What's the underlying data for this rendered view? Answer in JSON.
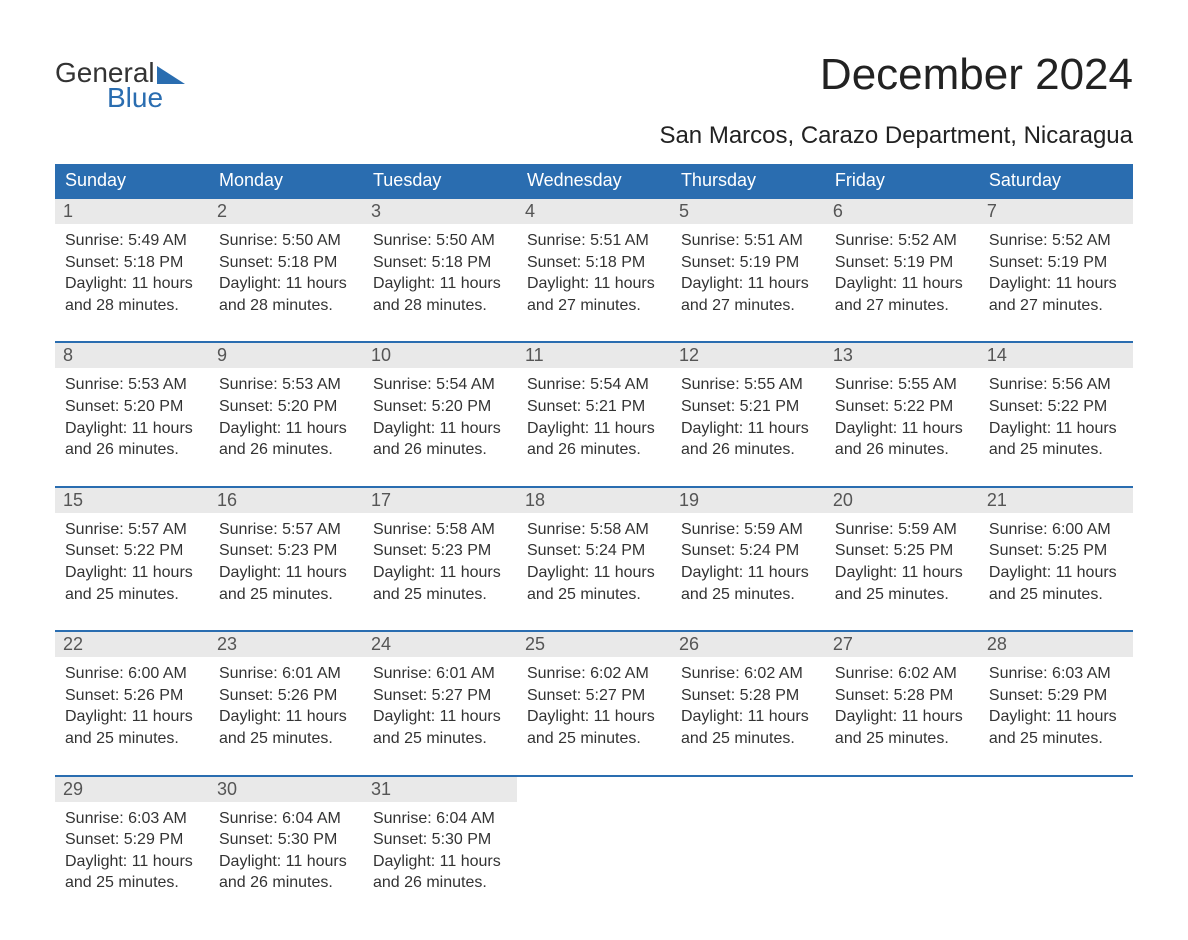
{
  "brand": {
    "part1": "General",
    "part2": "Blue"
  },
  "header": {
    "month_title": "December 2024",
    "location": "San Marcos, Carazo Department, Nicaragua"
  },
  "colors": {
    "header_blue": "#2a6db0",
    "row_band": "#e9e9e9",
    "text": "#333333",
    "bg": "#ffffff"
  },
  "days_of_week": [
    "Sunday",
    "Monday",
    "Tuesday",
    "Wednesday",
    "Thursday",
    "Friday",
    "Saturday"
  ],
  "weeks": [
    [
      {
        "n": "1",
        "sunrise": "Sunrise: 5:49 AM",
        "sunset": "Sunset: 5:18 PM",
        "d1": "Daylight: 11 hours",
        "d2": "and 28 minutes."
      },
      {
        "n": "2",
        "sunrise": "Sunrise: 5:50 AM",
        "sunset": "Sunset: 5:18 PM",
        "d1": "Daylight: 11 hours",
        "d2": "and 28 minutes."
      },
      {
        "n": "3",
        "sunrise": "Sunrise: 5:50 AM",
        "sunset": "Sunset: 5:18 PM",
        "d1": "Daylight: 11 hours",
        "d2": "and 28 minutes."
      },
      {
        "n": "4",
        "sunrise": "Sunrise: 5:51 AM",
        "sunset": "Sunset: 5:18 PM",
        "d1": "Daylight: 11 hours",
        "d2": "and 27 minutes."
      },
      {
        "n": "5",
        "sunrise": "Sunrise: 5:51 AM",
        "sunset": "Sunset: 5:19 PM",
        "d1": "Daylight: 11 hours",
        "d2": "and 27 minutes."
      },
      {
        "n": "6",
        "sunrise": "Sunrise: 5:52 AM",
        "sunset": "Sunset: 5:19 PM",
        "d1": "Daylight: 11 hours",
        "d2": "and 27 minutes."
      },
      {
        "n": "7",
        "sunrise": "Sunrise: 5:52 AM",
        "sunset": "Sunset: 5:19 PM",
        "d1": "Daylight: 11 hours",
        "d2": "and 27 minutes."
      }
    ],
    [
      {
        "n": "8",
        "sunrise": "Sunrise: 5:53 AM",
        "sunset": "Sunset: 5:20 PM",
        "d1": "Daylight: 11 hours",
        "d2": "and 26 minutes."
      },
      {
        "n": "9",
        "sunrise": "Sunrise: 5:53 AM",
        "sunset": "Sunset: 5:20 PM",
        "d1": "Daylight: 11 hours",
        "d2": "and 26 minutes."
      },
      {
        "n": "10",
        "sunrise": "Sunrise: 5:54 AM",
        "sunset": "Sunset: 5:20 PM",
        "d1": "Daylight: 11 hours",
        "d2": "and 26 minutes."
      },
      {
        "n": "11",
        "sunrise": "Sunrise: 5:54 AM",
        "sunset": "Sunset: 5:21 PM",
        "d1": "Daylight: 11 hours",
        "d2": "and 26 minutes."
      },
      {
        "n": "12",
        "sunrise": "Sunrise: 5:55 AM",
        "sunset": "Sunset: 5:21 PM",
        "d1": "Daylight: 11 hours",
        "d2": "and 26 minutes."
      },
      {
        "n": "13",
        "sunrise": "Sunrise: 5:55 AM",
        "sunset": "Sunset: 5:22 PM",
        "d1": "Daylight: 11 hours",
        "d2": "and 26 minutes."
      },
      {
        "n": "14",
        "sunrise": "Sunrise: 5:56 AM",
        "sunset": "Sunset: 5:22 PM",
        "d1": "Daylight: 11 hours",
        "d2": "and 25 minutes."
      }
    ],
    [
      {
        "n": "15",
        "sunrise": "Sunrise: 5:57 AM",
        "sunset": "Sunset: 5:22 PM",
        "d1": "Daylight: 11 hours",
        "d2": "and 25 minutes."
      },
      {
        "n": "16",
        "sunrise": "Sunrise: 5:57 AM",
        "sunset": "Sunset: 5:23 PM",
        "d1": "Daylight: 11 hours",
        "d2": "and 25 minutes."
      },
      {
        "n": "17",
        "sunrise": "Sunrise: 5:58 AM",
        "sunset": "Sunset: 5:23 PM",
        "d1": "Daylight: 11 hours",
        "d2": "and 25 minutes."
      },
      {
        "n": "18",
        "sunrise": "Sunrise: 5:58 AM",
        "sunset": "Sunset: 5:24 PM",
        "d1": "Daylight: 11 hours",
        "d2": "and 25 minutes."
      },
      {
        "n": "19",
        "sunrise": "Sunrise: 5:59 AM",
        "sunset": "Sunset: 5:24 PM",
        "d1": "Daylight: 11 hours",
        "d2": "and 25 minutes."
      },
      {
        "n": "20",
        "sunrise": "Sunrise: 5:59 AM",
        "sunset": "Sunset: 5:25 PM",
        "d1": "Daylight: 11 hours",
        "d2": "and 25 minutes."
      },
      {
        "n": "21",
        "sunrise": "Sunrise: 6:00 AM",
        "sunset": "Sunset: 5:25 PM",
        "d1": "Daylight: 11 hours",
        "d2": "and 25 minutes."
      }
    ],
    [
      {
        "n": "22",
        "sunrise": "Sunrise: 6:00 AM",
        "sunset": "Sunset: 5:26 PM",
        "d1": "Daylight: 11 hours",
        "d2": "and 25 minutes."
      },
      {
        "n": "23",
        "sunrise": "Sunrise: 6:01 AM",
        "sunset": "Sunset: 5:26 PM",
        "d1": "Daylight: 11 hours",
        "d2": "and 25 minutes."
      },
      {
        "n": "24",
        "sunrise": "Sunrise: 6:01 AM",
        "sunset": "Sunset: 5:27 PM",
        "d1": "Daylight: 11 hours",
        "d2": "and 25 minutes."
      },
      {
        "n": "25",
        "sunrise": "Sunrise: 6:02 AM",
        "sunset": "Sunset: 5:27 PM",
        "d1": "Daylight: 11 hours",
        "d2": "and 25 minutes."
      },
      {
        "n": "26",
        "sunrise": "Sunrise: 6:02 AM",
        "sunset": "Sunset: 5:28 PM",
        "d1": "Daylight: 11 hours",
        "d2": "and 25 minutes."
      },
      {
        "n": "27",
        "sunrise": "Sunrise: 6:02 AM",
        "sunset": "Sunset: 5:28 PM",
        "d1": "Daylight: 11 hours",
        "d2": "and 25 minutes."
      },
      {
        "n": "28",
        "sunrise": "Sunrise: 6:03 AM",
        "sunset": "Sunset: 5:29 PM",
        "d1": "Daylight: 11 hours",
        "d2": "and 25 minutes."
      }
    ],
    [
      {
        "n": "29",
        "sunrise": "Sunrise: 6:03 AM",
        "sunset": "Sunset: 5:29 PM",
        "d1": "Daylight: 11 hours",
        "d2": "and 25 minutes."
      },
      {
        "n": "30",
        "sunrise": "Sunrise: 6:04 AM",
        "sunset": "Sunset: 5:30 PM",
        "d1": "Daylight: 11 hours",
        "d2": "and 26 minutes."
      },
      {
        "n": "31",
        "sunrise": "Sunrise: 6:04 AM",
        "sunset": "Sunset: 5:30 PM",
        "d1": "Daylight: 11 hours",
        "d2": "and 26 minutes."
      },
      null,
      null,
      null,
      null
    ]
  ]
}
